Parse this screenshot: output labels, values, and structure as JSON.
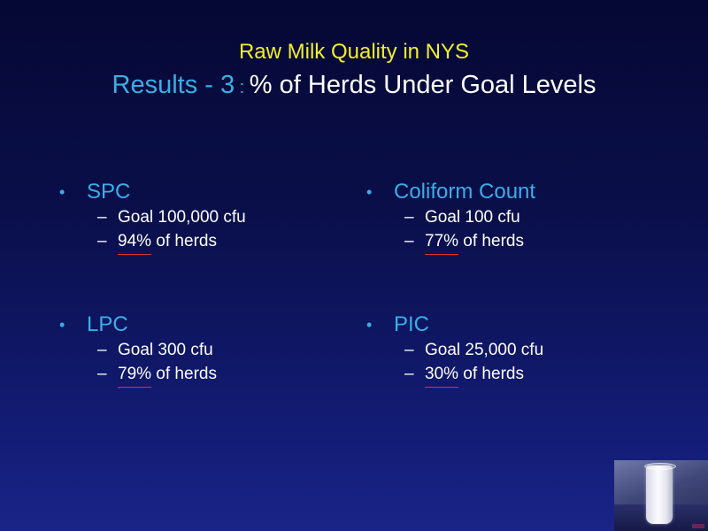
{
  "title": {
    "line1": "Raw Milk Quality in NYS",
    "line2_accent": "Results - 3",
    "line2_colon": " : ",
    "line2_rest": "% of Herds Under Goal Levels"
  },
  "bullets": [
    {
      "label": "SPC",
      "goal": "Goal 100,000 cfu",
      "percent": "94%",
      "suffix": " of herds"
    },
    {
      "label": "Coliform Count",
      "goal": "Goal 100 cfu",
      "percent": "77%",
      "suffix": " of herds"
    },
    {
      "label": "LPC",
      "goal": "Goal 300 cfu",
      "percent": "79%",
      "suffix": " of herds"
    },
    {
      "label": "PIC",
      "goal": "Goal 25,000 cfu",
      "percent": "30%",
      "suffix": " of herds"
    }
  ],
  "symbols": {
    "bullet": "•",
    "dash": "–"
  },
  "colors": {
    "title_yellow": "#f2ef2c",
    "accent_blue": "#3aaee8",
    "underline_red": "#e8302a",
    "text_white": "#ffffff"
  },
  "photo": {
    "icon": "milk-glass-photo"
  }
}
